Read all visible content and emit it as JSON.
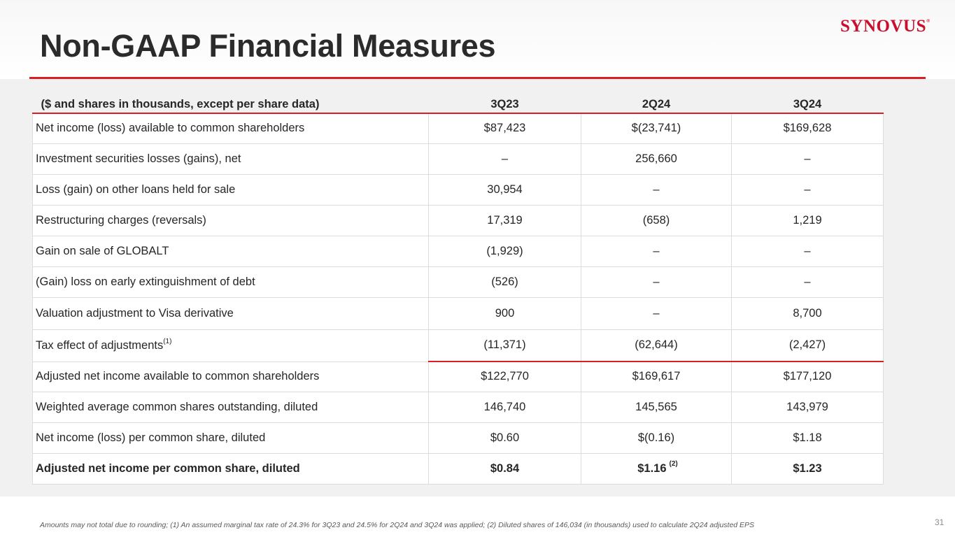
{
  "slide": {
    "title": "Non-GAAP Financial Measures",
    "logo": "Synovus",
    "logo_mark": "®",
    "page_number": "31",
    "footnote": "Amounts may not total due to rounding; (1) An assumed marginal tax rate of 24.3% for 3Q23 and 24.5% for 2Q24 and 3Q24  was applied; (2) Diluted shares of 146,034 (in thousands) used to calculate 2Q24 adjusted EPS"
  },
  "table": {
    "headers": [
      "($ and shares in thousands, except per share data)",
      "3Q23",
      "2Q24",
      "3Q24"
    ],
    "rows": [
      {
        "label": "Net income (loss) available to common shareholders",
        "values": [
          "$87,423",
          "$(23,741)",
          "$169,628"
        ]
      },
      {
        "label": "Investment securities losses (gains), net",
        "values": [
          "–",
          "256,660",
          "–"
        ]
      },
      {
        "label": "Loss (gain) on other loans held for sale",
        "values": [
          "30,954",
          "–",
          "–"
        ]
      },
      {
        "label": "Restructuring charges (reversals)",
        "values": [
          "17,319",
          "(658)",
          "1,219"
        ]
      },
      {
        "label": "Gain on sale of GLOBALT",
        "values": [
          "(1,929)",
          "–",
          "–"
        ]
      },
      {
        "label": "(Gain) loss on early extinguishment of debt",
        "values": [
          "(526)",
          "–",
          "–"
        ]
      },
      {
        "label": "Valuation adjustment to Visa derivative",
        "values": [
          "900",
          "–",
          "8,700"
        ]
      },
      {
        "label": "Tax effect of adjustments",
        "footnote": "(1)",
        "values": [
          "(11,371)",
          "(62,644)",
          "(2,427)"
        ]
      },
      {
        "label": "Adjusted net income available to common shareholders",
        "values": [
          "$122,770",
          "$169,617",
          "$177,120"
        ]
      },
      {
        "label": "Weighted average common shares outstanding, diluted",
        "values": [
          "146,740",
          "145,565",
          "143,979"
        ]
      },
      {
        "label": "Net income (loss) per common share, diluted",
        "values": [
          "$0.60",
          "$(0.16)",
          "$1.18"
        ]
      },
      {
        "label": "Adjusted net income per common share, diluted",
        "values": [
          "$0.84",
          "$1.16",
          "$1.23"
        ],
        "footnote_2q24": "(2)"
      }
    ]
  }
}
